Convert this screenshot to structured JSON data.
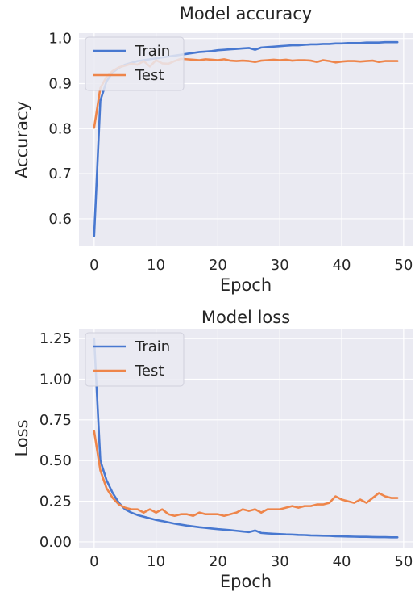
{
  "chart_data": [
    {
      "type": "line",
      "title": "Model accuracy",
      "xlabel": "Epoch",
      "ylabel": "Accuracy",
      "xlim": [
        -2.45,
        51.45
      ],
      "ylim": [
        0.539,
        1.012
      ],
      "xticks": [
        0,
        10,
        20,
        30,
        40,
        50
      ],
      "xtick_labels": [
        "0",
        "10",
        "20",
        "30",
        "40",
        "50"
      ],
      "yticks": [
        0.6,
        0.7,
        0.8,
        0.9,
        1.0
      ],
      "ytick_labels": [
        "0.6",
        "0.7",
        "0.8",
        "0.9",
        "1.0"
      ],
      "grid": true,
      "legend": "upper-left",
      "x": [
        0,
        1,
        2,
        3,
        4,
        5,
        6,
        7,
        8,
        9,
        10,
        11,
        12,
        13,
        14,
        15,
        16,
        17,
        18,
        19,
        20,
        21,
        22,
        23,
        24,
        25,
        26,
        27,
        28,
        29,
        30,
        31,
        32,
        33,
        34,
        35,
        36,
        37,
        38,
        39,
        40,
        41,
        42,
        43,
        44,
        45,
        46,
        47,
        48,
        49
      ],
      "series": [
        {
          "name": "Train",
          "color": "#4878d0",
          "values": [
            0.562,
            0.862,
            0.905,
            0.925,
            0.935,
            0.942,
            0.946,
            0.95,
            0.952,
            0.954,
            0.956,
            0.958,
            0.96,
            0.962,
            0.964,
            0.966,
            0.968,
            0.97,
            0.971,
            0.972,
            0.974,
            0.975,
            0.976,
            0.977,
            0.978,
            0.979,
            0.975,
            0.98,
            0.981,
            0.982,
            0.983,
            0.984,
            0.985,
            0.985,
            0.986,
            0.987,
            0.987,
            0.988,
            0.988,
            0.989,
            0.989,
            0.99,
            0.99,
            0.99,
            0.991,
            0.991,
            0.991,
            0.992,
            0.992,
            0.992
          ]
        },
        {
          "name": "Test",
          "color": "#ee854a",
          "values": [
            0.802,
            0.89,
            0.915,
            0.928,
            0.936,
            0.94,
            0.944,
            0.942,
            0.95,
            0.938,
            0.952,
            0.945,
            0.944,
            0.95,
            0.955,
            0.954,
            0.953,
            0.952,
            0.954,
            0.953,
            0.952,
            0.954,
            0.951,
            0.95,
            0.951,
            0.95,
            0.948,
            0.951,
            0.952,
            0.953,
            0.952,
            0.953,
            0.951,
            0.952,
            0.952,
            0.951,
            0.948,
            0.952,
            0.95,
            0.947,
            0.949,
            0.95,
            0.95,
            0.949,
            0.95,
            0.951,
            0.948,
            0.95,
            0.95,
            0.95
          ]
        }
      ]
    },
    {
      "type": "line",
      "title": "Model loss",
      "xlabel": "Epoch",
      "ylabel": "Loss",
      "xlim": [
        -2.45,
        51.45
      ],
      "ylim": [
        -0.035,
        1.31
      ],
      "xticks": [
        0,
        10,
        20,
        30,
        40,
        50
      ],
      "xtick_labels": [
        "0",
        "10",
        "20",
        "30",
        "40",
        "50"
      ],
      "yticks": [
        0.0,
        0.25,
        0.5,
        0.75,
        1.0,
        1.25
      ],
      "ytick_labels": [
        "0.00",
        "0.25",
        "0.50",
        "0.75",
        "1.00",
        "1.25"
      ],
      "grid": true,
      "legend": "upper-left",
      "x": [
        0,
        1,
        2,
        3,
        4,
        5,
        6,
        7,
        8,
        9,
        10,
        11,
        12,
        13,
        14,
        15,
        16,
        17,
        18,
        19,
        20,
        21,
        22,
        23,
        24,
        25,
        26,
        27,
        28,
        29,
        30,
        31,
        32,
        33,
        34,
        35,
        36,
        37,
        38,
        39,
        40,
        41,
        42,
        43,
        44,
        45,
        46,
        47,
        48,
        49
      ],
      "series": [
        {
          "name": "Train",
          "color": "#4878d0",
          "values": [
            1.25,
            0.5,
            0.38,
            0.3,
            0.24,
            0.2,
            0.18,
            0.165,
            0.155,
            0.145,
            0.135,
            0.128,
            0.12,
            0.112,
            0.106,
            0.1,
            0.095,
            0.09,
            0.086,
            0.082,
            0.078,
            0.075,
            0.072,
            0.068,
            0.064,
            0.06,
            0.07,
            0.055,
            0.052,
            0.05,
            0.048,
            0.046,
            0.045,
            0.043,
            0.042,
            0.04,
            0.039,
            0.038,
            0.037,
            0.035,
            0.034,
            0.033,
            0.032,
            0.031,
            0.031,
            0.03,
            0.029,
            0.029,
            0.028,
            0.028
          ]
        },
        {
          "name": "Test",
          "color": "#ee854a",
          "values": [
            0.68,
            0.44,
            0.33,
            0.27,
            0.23,
            0.21,
            0.2,
            0.2,
            0.18,
            0.2,
            0.18,
            0.2,
            0.17,
            0.16,
            0.17,
            0.17,
            0.16,
            0.18,
            0.17,
            0.17,
            0.17,
            0.16,
            0.17,
            0.18,
            0.2,
            0.19,
            0.2,
            0.18,
            0.2,
            0.2,
            0.2,
            0.21,
            0.22,
            0.21,
            0.22,
            0.22,
            0.23,
            0.23,
            0.24,
            0.28,
            0.26,
            0.25,
            0.24,
            0.26,
            0.24,
            0.27,
            0.3,
            0.28,
            0.27,
            0.27
          ]
        }
      ]
    }
  ]
}
